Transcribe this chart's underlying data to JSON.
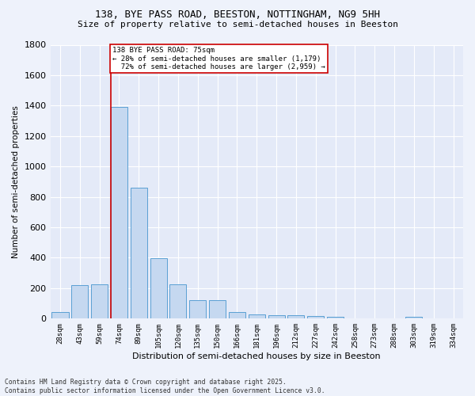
{
  "title_line1": "138, BYE PASS ROAD, BEESTON, NOTTINGHAM, NG9 5HH",
  "title_line2": "Size of property relative to semi-detached houses in Beeston",
  "xlabel": "Distribution of semi-detached houses by size in Beeston",
  "ylabel": "Number of semi-detached properties",
  "categories": [
    "28sqm",
    "43sqm",
    "59sqm",
    "74sqm",
    "89sqm",
    "105sqm",
    "120sqm",
    "135sqm",
    "150sqm",
    "166sqm",
    "181sqm",
    "196sqm",
    "212sqm",
    "227sqm",
    "242sqm",
    "258sqm",
    "273sqm",
    "288sqm",
    "303sqm",
    "319sqm",
    "334sqm"
  ],
  "values": [
    45,
    220,
    225,
    1390,
    860,
    395,
    225,
    120,
    120,
    45,
    30,
    25,
    20,
    15,
    10,
    0,
    0,
    0,
    10,
    0,
    0
  ],
  "bar_color": "#c5d8f0",
  "bar_edge_color": "#5a9fd4",
  "pct_smaller": 28,
  "count_smaller": 1179,
  "pct_larger": 72,
  "count_larger": 2959,
  "vline_color": "#cc0000",
  "vline_x_index": 3,
  "ylim": [
    0,
    1800
  ],
  "yticks": [
    0,
    200,
    400,
    600,
    800,
    1000,
    1200,
    1400,
    1600,
    1800
  ],
  "bg_color": "#eef2fb",
  "plot_bg_color": "#e4eaf8",
  "grid_color": "#ffffff",
  "footer_line1": "Contains HM Land Registry data © Crown copyright and database right 2025.",
  "footer_line2": "Contains public sector information licensed under the Open Government Licence v3.0."
}
